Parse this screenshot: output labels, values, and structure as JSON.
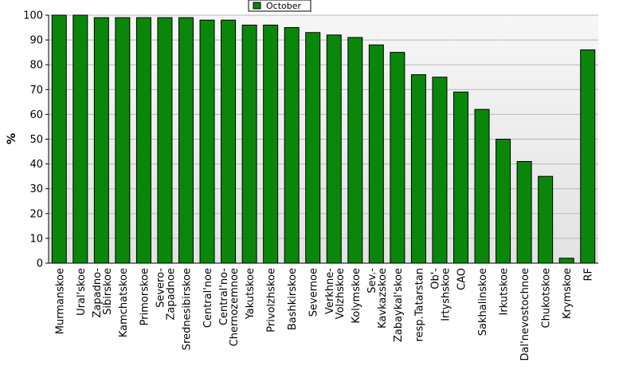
{
  "chart_data": {
    "type": "bar",
    "ylabel": "%",
    "ylim": [
      0,
      100
    ],
    "yticks": [
      0,
      10,
      20,
      30,
      40,
      50,
      60,
      70,
      80,
      90,
      100
    ],
    "grid": true,
    "legend": {
      "placement": "top-center",
      "entries": [
        "October"
      ]
    },
    "categories": [
      "Murmanskoe",
      "Ural'skoe",
      "Zapadno-\nSibirskoe",
      "Kamchatskoe",
      "Primorskoe",
      "Severo-\nZapadnoe",
      "Srednesibirskoe",
      "Central'noe",
      "Central'no-\nChernozemnoe",
      "Yakutskoe",
      "Privolzhskoe",
      "Bashkirskoe",
      "Severnoe",
      "Verkhne-\nVolzhskoe",
      "Kolymskoe",
      "Sev.-\nKavkazskoe",
      "Zabaykal'skoe",
      "resp.Tatarstan",
      "Ob'-\nIrtyshskoe",
      "CAO",
      "Sakhalinskoe",
      "Irkutskoe",
      "Dal'nevostochnoe",
      "Chukotskoe",
      "Krymskoe",
      "RF"
    ],
    "series": [
      {
        "name": "October",
        "values": [
          100,
          100,
          99,
          99,
          99,
          99,
          99,
          98,
          98,
          96,
          96,
          95,
          93,
          92,
          91,
          88,
          85,
          76,
          75,
          69,
          62,
          50,
          41,
          35,
          2,
          86
        ]
      }
    ]
  },
  "colors": {
    "bar_fill": "#0a870a",
    "bar_stroke": "#000000",
    "grid": "#b8b8b8",
    "plot_bg_top": "#f6f6f6",
    "plot_bg_bottom": "#e2e2e2"
  }
}
